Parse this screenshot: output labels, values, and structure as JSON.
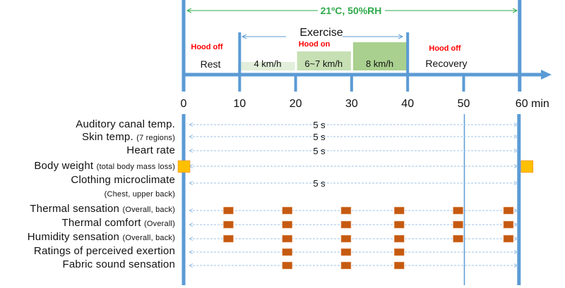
{
  "colors": {
    "axis": "#5b9bd5",
    "condition": "#2eaa4a",
    "hood": "#ff0000",
    "marker_sensation": "#c55a11",
    "marker_weight": "#ffc000",
    "speed1": "#e2efda",
    "speed2": "#c6e0b4",
    "speed3": "#a9d08e"
  },
  "condition": "21ºC, 50%RH",
  "timeline": {
    "ticks": [
      0,
      10,
      20,
      30,
      40,
      50,
      60
    ],
    "tick_labels": [
      "0",
      "10",
      "20",
      "30",
      "40",
      "50",
      "60 min"
    ],
    "exercise_label": "Exercise",
    "phases": [
      {
        "hood": "Hood off",
        "label": "Rest"
      },
      {
        "hood": "Hood on"
      },
      {
        "hood": "Hood off",
        "label": "Recovery"
      }
    ],
    "speeds": [
      {
        "label": "4 km/h",
        "start": 10,
        "end": 20
      },
      {
        "label": "6~7 km/h",
        "start": 20,
        "end": 30
      },
      {
        "label": "8 km/h",
        "start": 30,
        "end": 40
      }
    ]
  },
  "measurements": [
    {
      "name": "Auditory canal temp.",
      "note": "",
      "interval": "5 s",
      "markers": []
    },
    {
      "name": "Skin temp.",
      "note": "(7 regions)",
      "interval": "5 s",
      "markers": []
    },
    {
      "name": "Heart rate",
      "note": "",
      "interval": "5 s",
      "markers": []
    },
    {
      "name": "Body weight",
      "note": "(total body mass loss)",
      "interval": "",
      "markers": [
        0,
        60
      ],
      "marker_type": "weight"
    },
    {
      "name": "Clothing microclimate",
      "note": "(Chest, upper back)",
      "interval": "5 s",
      "markers": []
    },
    {
      "name": "Thermal sensation",
      "note": "(Overall, back)",
      "interval": "",
      "markers": [
        8,
        18.5,
        29,
        38.5,
        49,
        58
      ]
    },
    {
      "name": "Thermal comfort",
      "note": "(Overall)",
      "interval": "",
      "markers": [
        8,
        18.5,
        29,
        38.5,
        49,
        58
      ]
    },
    {
      "name": "Humidity sensation",
      "note": "(Overall, back)",
      "interval": "",
      "markers": [
        8,
        18.5,
        29,
        38.5,
        49,
        58
      ]
    },
    {
      "name": "Ratings of perceived exertion",
      "note": "",
      "interval": "",
      "markers": [
        18.5,
        29,
        38.5
      ]
    },
    {
      "name": "Fabric sound sensation",
      "note": "",
      "interval": "",
      "markers": [
        18.5,
        29,
        38.5
      ]
    }
  ]
}
